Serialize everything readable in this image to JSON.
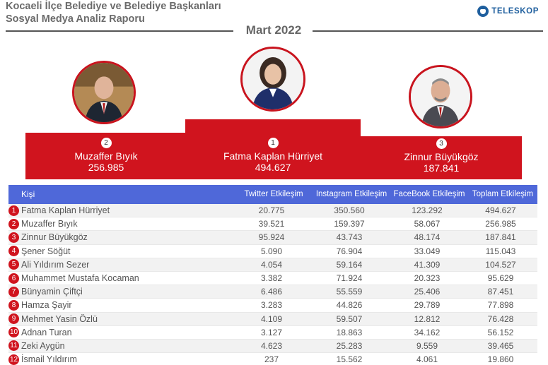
{
  "header": {
    "title_line1": "Kocaeli İlçe Belediye ve Belediye Başkanları",
    "title_line2": "Sosyal Medya Analiz Raporu",
    "brand": "TELESKOP",
    "period": "Mart 2022"
  },
  "podium": {
    "first": {
      "rank": "1",
      "name": "Fatma Kaplan Hürriyet",
      "value": "494.627"
    },
    "second": {
      "rank": "2",
      "name": "Muzaffer Bıyık",
      "value": "256.985"
    },
    "third": {
      "rank": "3",
      "name": "Zinnur Büyükgöz",
      "value": "187.841"
    }
  },
  "table": {
    "headers": {
      "name": "Kişi",
      "twitter": "Twitter Etkileşim",
      "instagram": "Instagram Etkileşim",
      "facebook": "FaceBook Etkileşim",
      "total": "Toplam Etkileşim"
    },
    "rows": [
      {
        "rank": "1",
        "name": "Fatma Kaplan Hürriyet",
        "twitter": "20.775",
        "instagram": "350.560",
        "facebook": "123.292",
        "total": "494.627"
      },
      {
        "rank": "2",
        "name": "Muzaffer Bıyık",
        "twitter": "39.521",
        "instagram": "159.397",
        "facebook": "58.067",
        "total": "256.985"
      },
      {
        "rank": "3",
        "name": "Zinnur Büyükgöz",
        "twitter": "95.924",
        "instagram": "43.743",
        "facebook": "48.174",
        "total": "187.841"
      },
      {
        "rank": "4",
        "name": "Şener Söğüt",
        "twitter": "5.090",
        "instagram": "76.904",
        "facebook": "33.049",
        "total": "115.043"
      },
      {
        "rank": "5",
        "name": "Ali Yıldırım Sezer",
        "twitter": "4.054",
        "instagram": "59.164",
        "facebook": "41.309",
        "total": "104.527"
      },
      {
        "rank": "6",
        "name": "Muhammet Mustafa Kocaman",
        "twitter": "3.382",
        "instagram": "71.924",
        "facebook": "20.323",
        "total": "95.629"
      },
      {
        "rank": "7",
        "name": "Bünyamin Çiftçi",
        "twitter": "6.486",
        "instagram": "55.559",
        "facebook": "25.406",
        "total": "87.451"
      },
      {
        "rank": "8",
        "name": "Hamza Şayir",
        "twitter": "3.283",
        "instagram": "44.826",
        "facebook": "29.789",
        "total": "77.898"
      },
      {
        "rank": "9",
        "name": "Mehmet Yasin Özlü",
        "twitter": "4.109",
        "instagram": "59.507",
        "facebook": "12.812",
        "total": "76.428"
      },
      {
        "rank": "10",
        "name": "Adnan Turan",
        "twitter": "3.127",
        "instagram": "18.863",
        "facebook": "34.162",
        "total": "56.152"
      },
      {
        "rank": "11",
        "name": "Zeki Aygün",
        "twitter": "4.623",
        "instagram": "25.283",
        "facebook": "9.559",
        "total": "39.465"
      },
      {
        "rank": "12",
        "name": "İsmail Yıldırım",
        "twitter": "237",
        "instagram": "15.562",
        "facebook": "4.061",
        "total": "19.860"
      }
    ]
  },
  "colors": {
    "accent_red": "#d0141e",
    "header_blue": "#4f68d9",
    "brand_blue": "#1f5f9e"
  }
}
